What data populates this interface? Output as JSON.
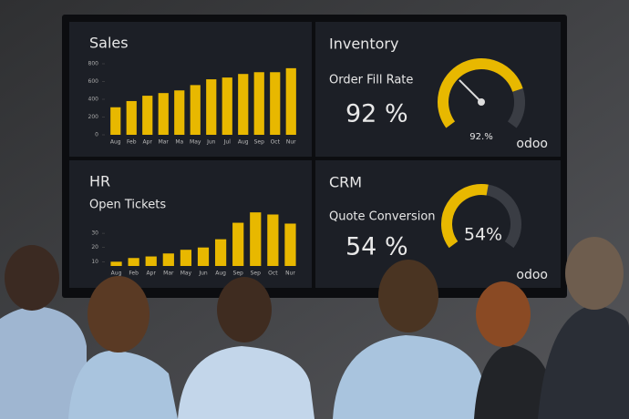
{
  "chart_data": [
    {
      "type": "bar",
      "title": "Sales",
      "color": "#e8b800",
      "categories": [
        "Aug",
        "Feb",
        "Apr",
        "Mar",
        "Ma",
        "May",
        "Jun",
        "Jul",
        "Aug",
        "Sep",
        "Oct",
        "Nur"
      ],
      "values": [
        310,
        380,
        440,
        470,
        500,
        560,
        625,
        645,
        685,
        705,
        705,
        750
      ],
      "ylim": [
        0,
        800
      ],
      "yticks": [
        0,
        200,
        400,
        600,
        800
      ]
    },
    {
      "type": "gauge",
      "title": "Inventory",
      "subtitle": "Order Fill Rate",
      "color": "#e8b800",
      "values": [
        92
      ],
      "value_labels": [
        "92 %"
      ],
      "gauge_label": "92.%",
      "ylim": [
        0,
        100
      ],
      "needle": true,
      "brand": "odoo"
    },
    {
      "type": "bar",
      "title": "HR",
      "subtitle": "Open Tickets",
      "color": "#e8b800",
      "categories": [
        "Aug",
        "Feb",
        "Apr",
        "Mar",
        "May",
        "Jun",
        "Aug",
        "Sep",
        "Sep",
        "Oct",
        "Nur"
      ],
      "values": [
        10,
        12.6,
        13.7,
        15.8,
        18.4,
        20,
        25.8,
        37.4,
        44.7,
        43.2,
        36.8
      ],
      "ylim": [
        7,
        48
      ],
      "yticks": [
        10,
        20,
        30
      ]
    },
    {
      "type": "gauge",
      "title": "CRM",
      "subtitle": "Quote Conversion",
      "color": "#e8b800",
      "values": [
        54
      ],
      "value_labels": [
        "54 %"
      ],
      "gauge_label": "54%",
      "ylim": [
        0,
        100
      ],
      "needle": false,
      "brand": "odoo"
    }
  ]
}
